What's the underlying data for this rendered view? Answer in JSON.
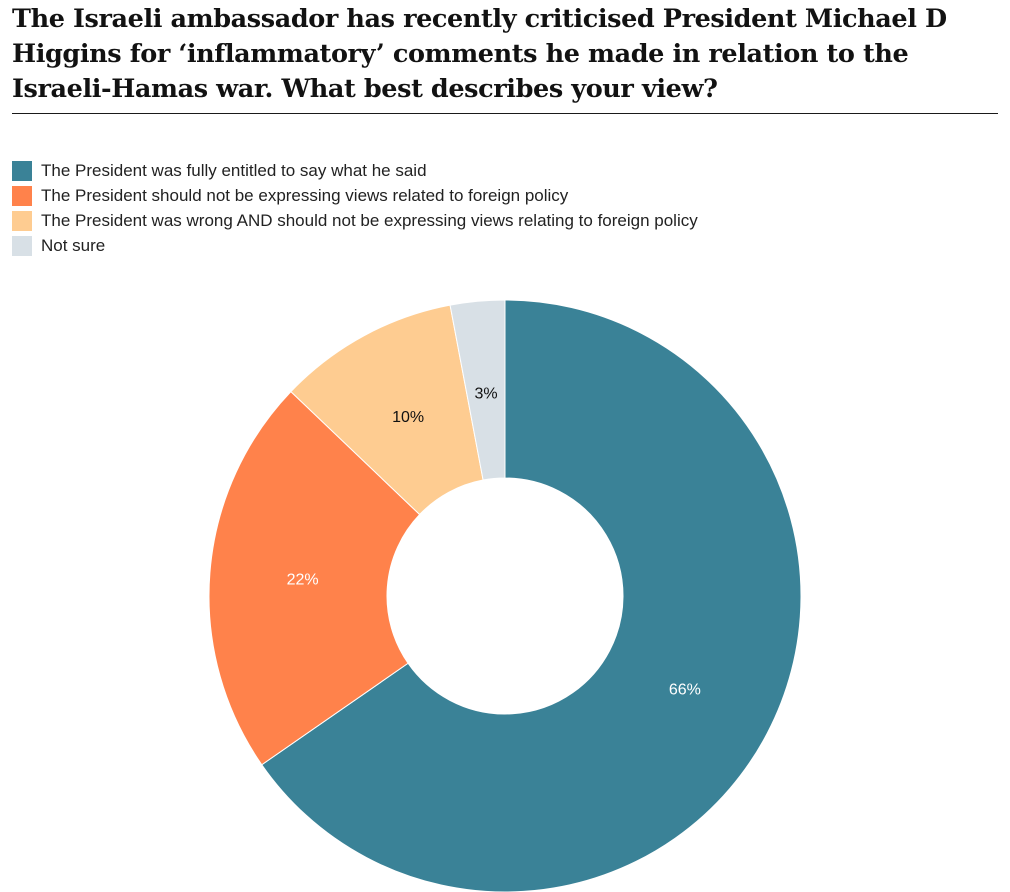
{
  "chart_data": {
    "type": "pie",
    "donut": true,
    "title": "The Israeli ambassador has recently criticised President Michael D Higgins for ‘inflammatory’ comments he made in relation to the Israeli-Hamas war. What best describes your view?",
    "legend_position": "top-left",
    "slices": [
      {
        "label": "The President was fully entitled to say what he said",
        "value": 66,
        "display": "66%",
        "color": "#3a8297",
        "label_color": "#ffffff"
      },
      {
        "label": "The President should not be expressing views related to foreign policy",
        "value": 22,
        "display": "22%",
        "color": "#ff824b",
        "label_color": "#ffffff"
      },
      {
        "label": "The President was wrong AND should not be expressing views relating to foreign policy",
        "value": 10,
        "display": "10%",
        "color": "#fecc91",
        "label_color": "#111111"
      },
      {
        "label": "Not sure",
        "value": 3,
        "display": "3%",
        "color": "#d8e0e6",
        "label_color": "#111111"
      }
    ]
  }
}
